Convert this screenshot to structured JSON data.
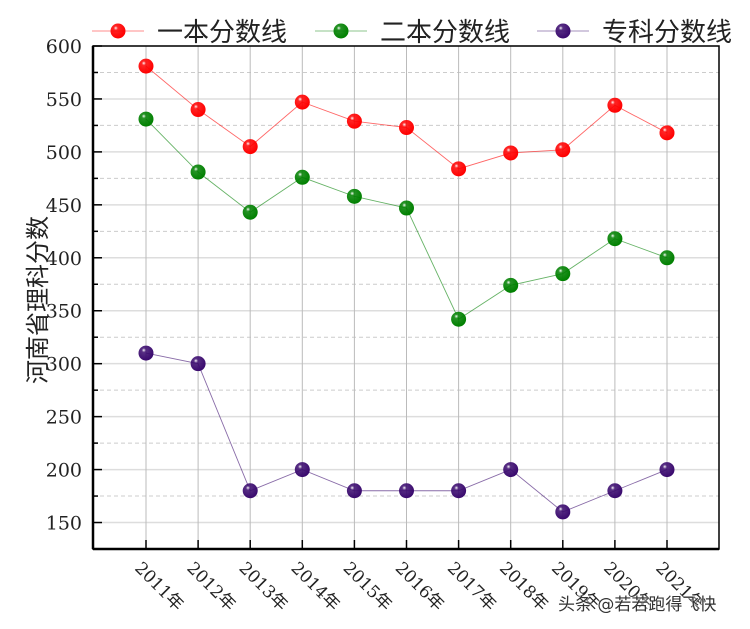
{
  "chart_data": {
    "type": "line",
    "title": "",
    "xlabel": "",
    "ylabel": "河南省理科分数",
    "categories": [
      "2011年",
      "2012年",
      "2013年",
      "2014年",
      "2015年",
      "2016年",
      "2017年",
      "2018年",
      "2019年",
      "2020年",
      "2021年"
    ],
    "series": [
      {
        "name": "一本分数线",
        "color": "#ff0000",
        "values": [
          581,
          540,
          505,
          547,
          529,
          523,
          484,
          499,
          502,
          544,
          518
        ]
      },
      {
        "name": "二本分数线",
        "color": "#008000",
        "values": [
          531,
          481,
          443,
          476,
          458,
          447,
          342,
          374,
          385,
          418,
          400
        ]
      },
      {
        "name": "专科分数线",
        "color": "#3a0a6e",
        "values": [
          310,
          300,
          180,
          200,
          180,
          180,
          180,
          200,
          160,
          180,
          200
        ]
      }
    ],
    "ylim": [
      125,
      600
    ],
    "yticks": [
      150,
      200,
      250,
      300,
      350,
      400,
      450,
      500,
      550,
      600
    ],
    "grid": true,
    "legend_position": "top"
  },
  "watermark": "头条 @若若跑得飞快"
}
